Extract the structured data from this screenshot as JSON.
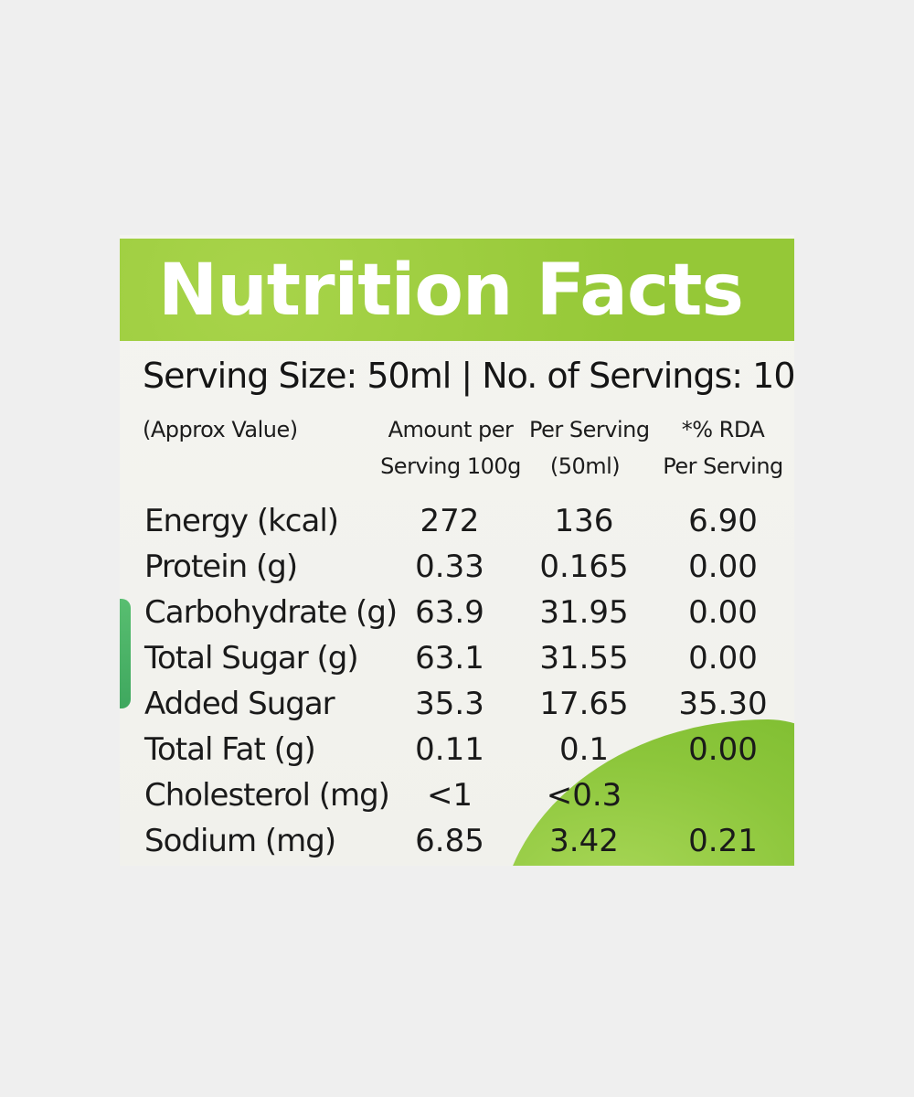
{
  "label": {
    "title": "Nutrition Facts",
    "serving_line": "Serving Size: 50ml | No. of Servings: 10",
    "headers": {
      "approx": "(Approx Value)",
      "col1_line1": "Amount per",
      "col1_line2": "Serving 100g",
      "col2_line1": "Per Serving",
      "col2_line2": "(50ml)",
      "col3_line1": "*% RDA",
      "col3_line2": "Per Serving"
    },
    "rows": [
      {
        "name": "Energy (kcal)",
        "v1": "272",
        "v2": "136",
        "v3": "6.90"
      },
      {
        "name": "Protein (g)",
        "v1": "0.33",
        "v2": "0.165",
        "v3": "0.00"
      },
      {
        "name": "Carbohydrate (g)",
        "v1": "63.9",
        "v2": "31.95",
        "v3": "0.00"
      },
      {
        "name": "Total Sugar (g)",
        "v1": "63.1",
        "v2": "31.55",
        "v3": "0.00"
      },
      {
        "name": "Added Sugar",
        "v1": "35.3",
        "v2": "17.65",
        "v3": "35.30"
      },
      {
        "name": "Total Fat (g)",
        "v1": "0.11",
        "v2": "0.1",
        "v3": "0.00"
      },
      {
        "name": "Cholesterol (mg)",
        "v1": "<1",
        "v2": "<0.3",
        "v3": ""
      },
      {
        "name": "Sodium (mg)",
        "v1": "6.85",
        "v2": "3.42",
        "v3": "0.21"
      }
    ]
  },
  "colors": {
    "background": "#efefef",
    "header_band": "#9bcc3c",
    "leaf": "#8cc83c",
    "text": "#1a1a1a"
  }
}
